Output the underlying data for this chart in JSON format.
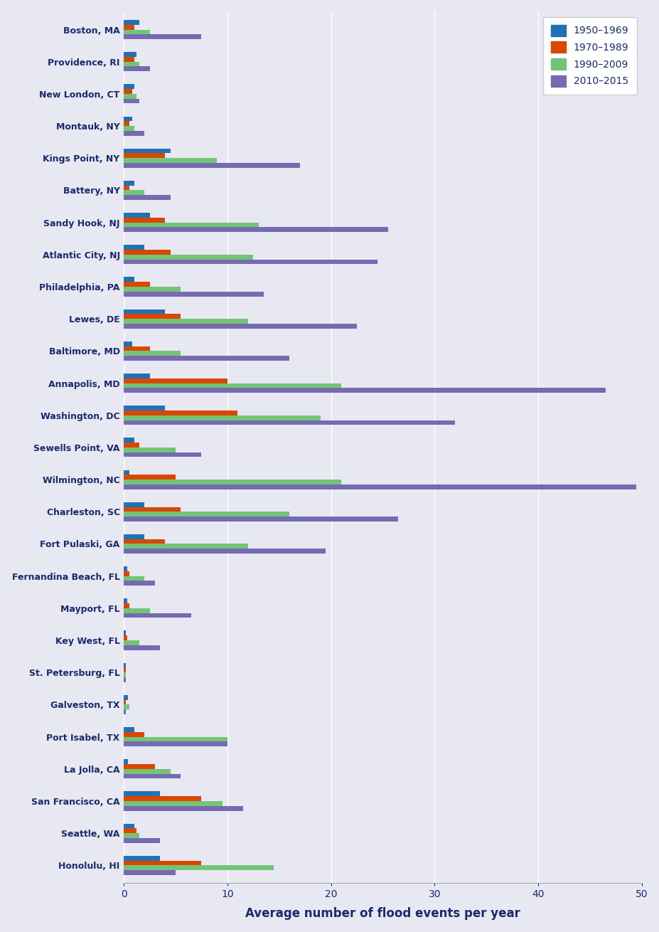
{
  "locations": [
    "Boston, MA",
    "Providence, RI",
    "New London, CT",
    "Montauk, NY",
    "Kings Point, NY",
    "Battery, NY",
    "Sandy Hook, NJ",
    "Atlantic City, NJ",
    "Philadelphia, PA",
    "Lewes, DE",
    "Baltimore, MD",
    "Annapolis, MD",
    "Washington, DC",
    "Sewells Point, VA",
    "Wilmington, NC",
    "Charleston, SC",
    "Fort Pulaski, GA",
    "Fernandina Beach, FL",
    "Mayport, FL",
    "Key West, FL",
    "St. Petersburg, FL",
    "Galveston, TX",
    "Port Isabel, TX",
    "La Jolla, CA",
    "San Francisco, CA",
    "Seattle, WA",
    "Honolulu, HI"
  ],
  "series": {
    "1950–1969": [
      1.5,
      1.2,
      1.0,
      0.8,
      4.5,
      1.0,
      2.5,
      2.0,
      1.0,
      4.0,
      0.8,
      2.5,
      4.0,
      1.0,
      0.5,
      2.0,
      2.0,
      0.3,
      0.3,
      0.2,
      0.2,
      0.4,
      1.0,
      0.4,
      3.5,
      1.0,
      3.5
    ],
    "1970–1989": [
      1.0,
      1.0,
      0.8,
      0.5,
      4.0,
      0.5,
      4.0,
      4.5,
      2.5,
      5.5,
      2.5,
      10.0,
      11.0,
      1.5,
      5.0,
      5.5,
      4.0,
      0.5,
      0.5,
      0.3,
      0.2,
      0.2,
      2.0,
      3.0,
      7.5,
      1.2,
      7.5
    ],
    "1990–2009": [
      2.5,
      1.5,
      1.2,
      1.0,
      9.0,
      2.0,
      13.0,
      12.5,
      5.5,
      12.0,
      5.5,
      21.0,
      19.0,
      5.0,
      21.0,
      16.0,
      12.0,
      2.0,
      2.5,
      1.5,
      0.2,
      0.5,
      10.0,
      4.5,
      9.5,
      1.5,
      14.5
    ],
    "2010–2015": [
      7.5,
      2.5,
      1.5,
      2.0,
      17.0,
      4.5,
      25.5,
      24.5,
      13.5,
      22.5,
      16.0,
      46.5,
      32.0,
      7.5,
      49.5,
      26.5,
      19.5,
      3.0,
      6.5,
      3.5,
      0.2,
      0.2,
      10.0,
      5.5,
      11.5,
      3.5,
      5.0
    ]
  },
  "colors": {
    "1950–1969": "#2171b5",
    "1970–1989": "#d94701",
    "1990–2009": "#74c476",
    "2010–2015": "#756bb1"
  },
  "xlabel": "Average number of flood events per year",
  "xlim": [
    0,
    50
  ],
  "xticks": [
    0,
    10,
    20,
    30,
    40,
    50
  ],
  "background_color": "#e8e8f2",
  "plot_bg_color": "#e8e8f2",
  "label_color": "#1a2a6c",
  "grid_color": "#ffffff",
  "legend_dash": "–"
}
